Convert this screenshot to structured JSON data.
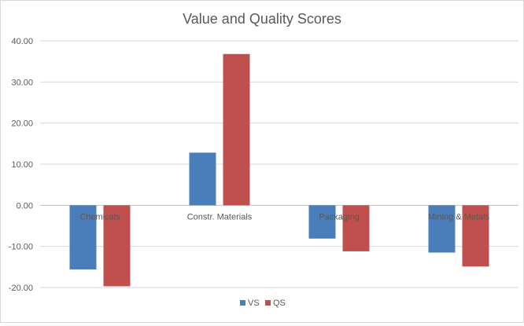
{
  "chart_data": {
    "type": "bar",
    "title": "Value and Quality Scores",
    "categories": [
      "Chemicals",
      "Constr. Materials",
      "Packaging",
      "Mining & Metals"
    ],
    "series": [
      {
        "name": "VS",
        "color": "#4A7EBB",
        "values": [
          -15.6,
          12.8,
          -8.1,
          -11.5
        ]
      },
      {
        "name": "QS",
        "color": "#C0504D",
        "values": [
          -19.7,
          36.8,
          -11.2,
          -14.9
        ]
      }
    ],
    "ylim": [
      -20,
      40
    ],
    "yticks": [
      "40.00",
      "30.00",
      "20.00",
      "10.00",
      "0.00",
      "-10.00",
      "-20.00"
    ],
    "ytick_values": [
      40,
      30,
      20,
      10,
      0,
      -10,
      -20
    ],
    "grid": true,
    "legend_position": "bottom",
    "xlabel": "",
    "ylabel": ""
  }
}
